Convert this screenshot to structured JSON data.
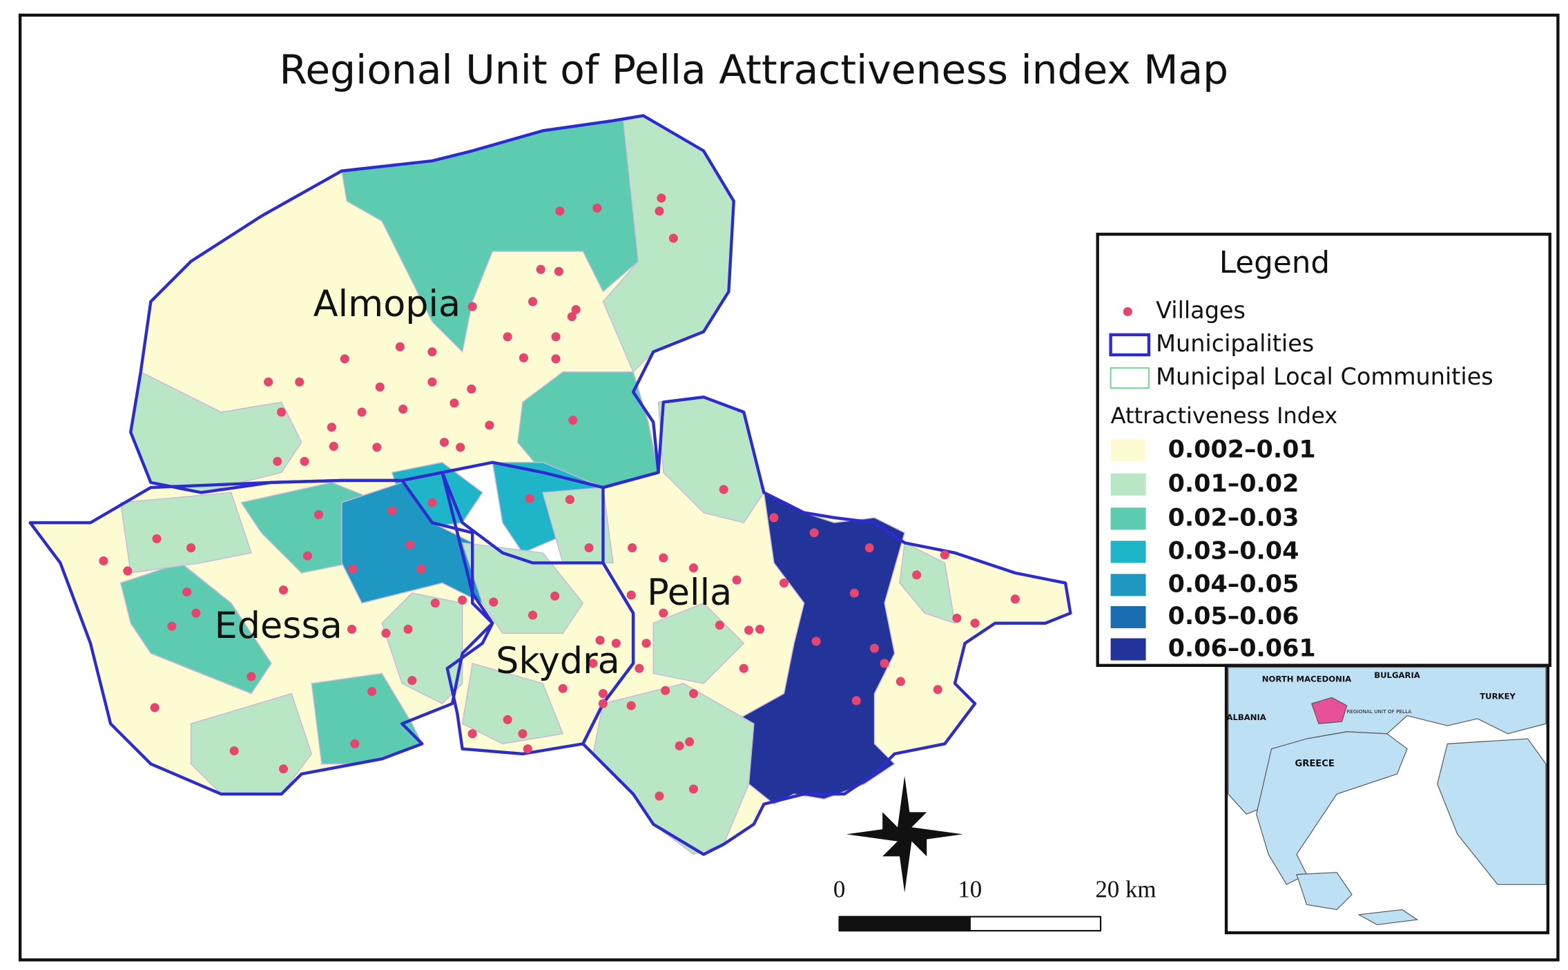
{
  "title": "Regional Unit of Pella Attractiveness index Map",
  "map_labels": [
    "Almopia",
    "Edessa",
    "Skydra",
    "Pella"
  ],
  "legend": {
    "title": "Legend",
    "items": [
      "Villages",
      "Municipalities",
      "Municipal Local Communities"
    ],
    "index_title": "Attractiveness Index",
    "classes": [
      {
        "label": "0.002–0.01",
        "color": "#fdfbd1"
      },
      {
        "label": "0.01–0.02",
        "color": "#b9e6c4"
      },
      {
        "label": "0.02–0.03",
        "color": "#5ccbb0"
      },
      {
        "label": "0.03–0.04",
        "color": "#1fb5c9"
      },
      {
        "label": "0.04–0.05",
        "color": "#1e97c2"
      },
      {
        "label": "0.05–0.06",
        "color": "#1a6db0"
      },
      {
        "label": "0.06–0.061",
        "color": "#223399"
      }
    ]
  },
  "scale_bar": [
    "0",
    "10",
    "20 km"
  ],
  "inset": {
    "labels": [
      "NORTH MACEDONIA",
      "BULGARIA",
      "TURKEY",
      "ALBANIA",
      "GREECE",
      "REGIONAL UNIT OF PELLA"
    ]
  }
}
